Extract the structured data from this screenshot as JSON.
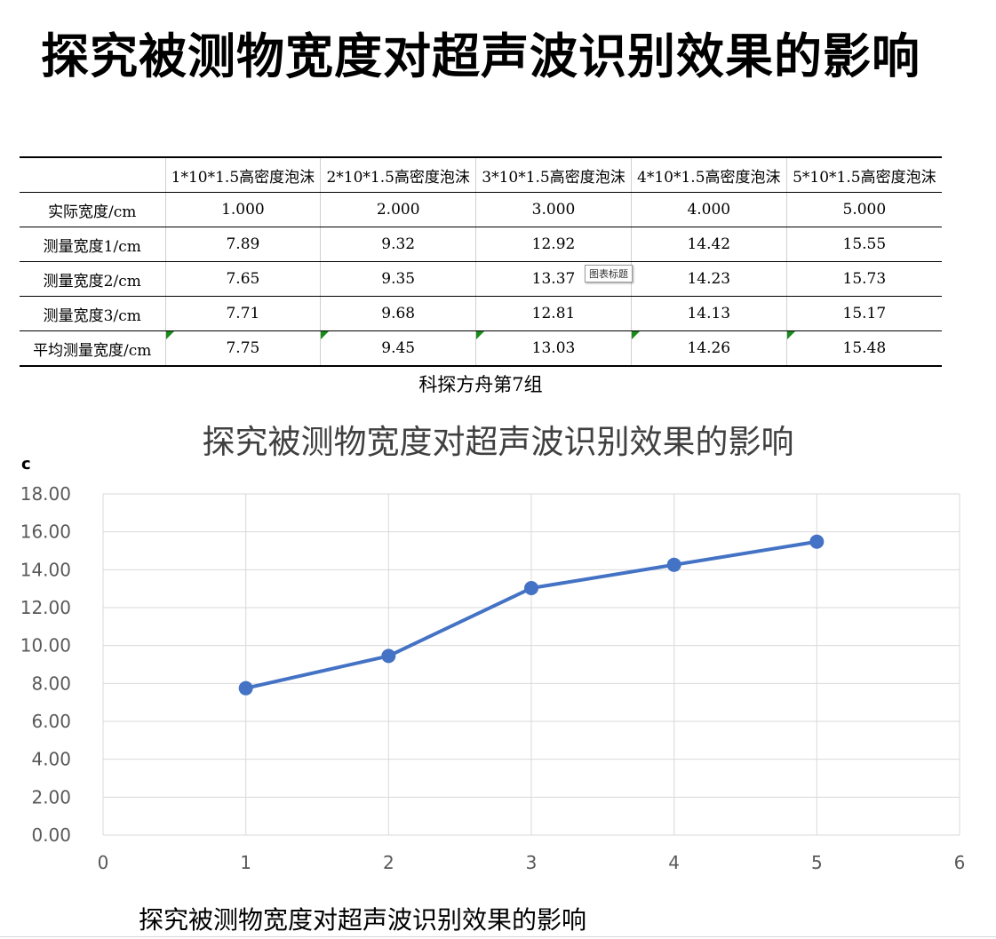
{
  "page_title": "探究被测物宽度对超声波识别效果的影响",
  "table": {
    "headers": [
      "",
      "1*10*1.5高密度泡沫",
      "2*10*1.5高密度泡沫",
      "3*10*1.5高密度泡沫",
      "4*10*1.5高密度泡沫",
      "5*10*1.5高密度泡沫"
    ],
    "rows": [
      {
        "label": "实际宽度/cm",
        "values": [
          "1.000",
          "2.000",
          "3.000",
          "4.000",
          "5.000"
        ]
      },
      {
        "label": "测量宽度1/cm",
        "values": [
          "7.89",
          "9.32",
          "12.92",
          "14.42",
          "15.55"
        ]
      },
      {
        "label": "测量宽度2/cm",
        "values": [
          "7.65",
          "9.35",
          "13.37",
          "14.23",
          "15.73"
        ]
      },
      {
        "label": "测量宽度3/cm",
        "values": [
          "7.71",
          "9.68",
          "12.81",
          "14.13",
          "15.17"
        ]
      },
      {
        "label": "平均测量宽度/cm",
        "values": [
          "7.75",
          "9.45",
          "13.03",
          "14.26",
          "15.48"
        ]
      }
    ]
  },
  "tooltip": "图表标题",
  "caption": "科探方舟第7组",
  "chart_data": {
    "type": "scatter",
    "title": "探究被测物宽度对超声波识别效果的影响",
    "ylabel": "c",
    "xlabel": "",
    "x": [
      1,
      2,
      3,
      4,
      5
    ],
    "series": [
      {
        "values": [
          7.75,
          9.45,
          13.03,
          14.26,
          15.48
        ]
      }
    ],
    "xlim": [
      0,
      6
    ],
    "ylim": [
      0,
      18
    ],
    "x_ticks": [
      0,
      1,
      2,
      3,
      4,
      5,
      6
    ],
    "y_ticks": [
      "0.00",
      "2.00",
      "4.00",
      "6.00",
      "8.00",
      "10.00",
      "12.00",
      "14.00",
      "16.00",
      "18.00"
    ],
    "grid": true,
    "lines_connect_points": true,
    "series_color": "#4472c4",
    "grid_color": "#d9d9d9"
  },
  "bottom_caption": "探究被测物宽度对超声波识别效果的影响"
}
